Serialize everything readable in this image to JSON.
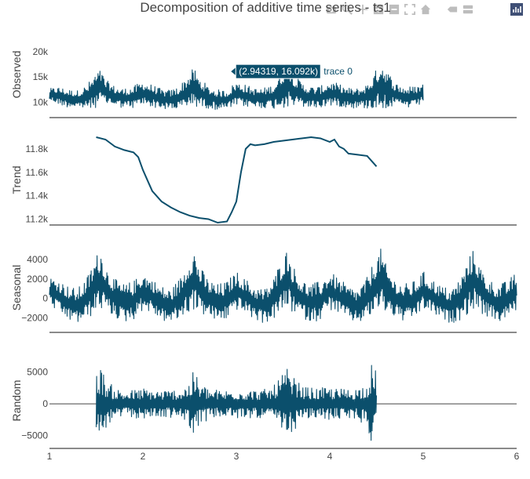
{
  "chart_data": {
    "type": "line",
    "title": "Decomposition of additive time series - ts1",
    "series_color": "#0b4f6c",
    "x_axis": {
      "range": [
        1,
        6
      ],
      "ticks": [
        "1",
        "2",
        "3",
        "4",
        "5",
        "6"
      ]
    },
    "panels": [
      {
        "ylabel": "Observed",
        "ylim": [
          7000,
          24000
        ],
        "ytick_values": [
          10000,
          15000,
          20000
        ],
        "ytick_labels": [
          "10k",
          "15k",
          "20k"
        ],
        "x": [
          1.0,
          1.1,
          1.2,
          1.3,
          1.4,
          1.5,
          1.55,
          1.6,
          1.7,
          1.8,
          1.9,
          2.0,
          2.1,
          2.2,
          2.3,
          2.4,
          2.5,
          2.55,
          2.6,
          2.7,
          2.8,
          2.9,
          3.0,
          3.1,
          3.2,
          3.3,
          3.4,
          3.5,
          3.55,
          3.6,
          3.7,
          3.8,
          3.9,
          4.0,
          4.1,
          4.2,
          4.3,
          4.4,
          4.5,
          4.55,
          4.6,
          4.7,
          4.8,
          4.9,
          5.0
        ],
        "y_mid": [
          11500,
          11300,
          10800,
          10600,
          11000,
          12500,
          13000,
          12000,
          11200,
          10800,
          11000,
          11800,
          11300,
          10600,
          10500,
          11000,
          12500,
          13000,
          12000,
          11000,
          10500,
          10500,
          11700,
          11300,
          10800,
          10900,
          11200,
          12800,
          13500,
          12500,
          11500,
          11000,
          11000,
          11800,
          11400,
          10900,
          10800,
          11200,
          12600,
          13600,
          12800,
          11500,
          11000,
          11000,
          11800
        ],
        "y_amp": [
          1200,
          1800,
          1800,
          1800,
          2500,
          3500,
          3500,
          2500,
          2000,
          2000,
          2200,
          2500,
          2200,
          2000,
          2000,
          2500,
          3500,
          3800,
          3000,
          2200,
          2000,
          2000,
          2500,
          2200,
          2000,
          2000,
          2500,
          4000,
          4500,
          3500,
          2500,
          2200,
          2200,
          2500,
          2200,
          2000,
          2000,
          2500,
          4000,
          5000,
          4000,
          2500,
          2200,
          2200,
          2000
        ]
      },
      {
        "ylabel": "Trend",
        "ylim": [
          11150,
          11920
        ],
        "ytick_values": [
          11200,
          11400,
          11600,
          11800
        ],
        "ytick_labels": [
          "11.2k",
          "11.4k",
          "11.6k",
          "11.8k"
        ],
        "x": [
          1.5,
          1.6,
          1.7,
          1.8,
          1.9,
          1.95,
          2.0,
          2.05,
          2.1,
          2.2,
          2.3,
          2.4,
          2.5,
          2.6,
          2.7,
          2.8,
          2.9,
          2.95,
          3.0,
          3.05,
          3.1,
          3.15,
          3.2,
          3.3,
          3.4,
          3.5,
          3.6,
          3.7,
          3.8,
          3.9,
          4.0,
          4.05,
          4.1,
          4.15,
          4.2,
          4.3,
          4.4,
          4.5
        ],
        "y": [
          11900,
          11880,
          11820,
          11790,
          11770,
          11730,
          11620,
          11530,
          11440,
          11350,
          11300,
          11260,
          11230,
          11210,
          11200,
          11170,
          11180,
          11260,
          11350,
          11600,
          11800,
          11840,
          11830,
          11840,
          11860,
          11870,
          11880,
          11890,
          11900,
          11890,
          11860,
          11880,
          11820,
          11800,
          11760,
          11750,
          11740,
          11650
        ]
      },
      {
        "ylabel": "Seasonal",
        "ylim": [
          -3500,
          5700
        ],
        "ytick_values": [
          -2000,
          0,
          2000,
          4000
        ],
        "ytick_labels": [
          "−2000",
          "0",
          "2000",
          "4000"
        ],
        "x": [
          1.0,
          1.1,
          1.2,
          1.3,
          1.4,
          1.5,
          1.55,
          1.6,
          1.7,
          1.8,
          1.9,
          2.0,
          2.1,
          2.2,
          2.3,
          2.4,
          2.5,
          2.55,
          2.6,
          2.7,
          2.8,
          2.9,
          3.0,
          3.1,
          3.2,
          3.3,
          3.4,
          3.5,
          3.55,
          3.6,
          3.7,
          3.8,
          3.9,
          4.0,
          4.1,
          4.2,
          4.3,
          4.4,
          4.5,
          4.55,
          4.6,
          4.7,
          4.8,
          4.9,
          5.0,
          5.1,
          5.2,
          5.3,
          5.4,
          5.5,
          5.55,
          5.6,
          5.7,
          5.8,
          5.9,
          6.0
        ],
        "y_mid": [
          800,
          200,
          -500,
          -800,
          0,
          1500,
          2000,
          1000,
          0,
          -500,
          -200,
          800,
          200,
          -500,
          -800,
          0,
          1500,
          2000,
          1000,
          0,
          -500,
          -200,
          800,
          200,
          -500,
          -800,
          0,
          1500,
          2000,
          1000,
          0,
          -500,
          -200,
          800,
          200,
          -500,
          -800,
          0,
          1500,
          2000,
          1000,
          0,
          -500,
          -200,
          800,
          200,
          -500,
          -800,
          0,
          1500,
          2000,
          1000,
          0,
          -500,
          -200,
          800
        ],
        "y_amp": [
          1500,
          1800,
          1800,
          1800,
          2200,
          3000,
          3200,
          2500,
          2000,
          2000,
          2000,
          2000,
          1800,
          1800,
          1800,
          2200,
          3000,
          3200,
          2500,
          2000,
          2000,
          2000,
          2000,
          1800,
          1800,
          1800,
          2200,
          3000,
          3200,
          2500,
          2000,
          2000,
          2000,
          2000,
          1800,
          1800,
          1800,
          2200,
          3000,
          3200,
          2500,
          2000,
          2000,
          2000,
          2000,
          1800,
          1800,
          1800,
          2200,
          3000,
          3200,
          2500,
          2000,
          2000,
          2000,
          2000
        ]
      },
      {
        "ylabel": "Random",
        "ylim": [
          -7000,
          8000
        ],
        "ytick_values": [
          -5000,
          0,
          5000
        ],
        "ytick_labels": [
          "−5000",
          "0",
          "5000"
        ],
        "x": [
          1.5,
          1.55,
          1.6,
          1.7,
          1.8,
          1.9,
          2.0,
          2.1,
          2.2,
          2.3,
          2.4,
          2.5,
          2.55,
          2.6,
          2.7,
          2.8,
          2.9,
          3.0,
          3.1,
          3.2,
          3.3,
          3.4,
          3.5,
          3.55,
          3.6,
          3.7,
          3.8,
          3.9,
          4.0,
          4.1,
          4.2,
          4.3,
          4.4,
          4.45,
          4.5
        ],
        "y_mid": [
          0,
          0,
          0,
          0,
          0,
          0,
          0,
          0,
          0,
          0,
          0,
          0,
          0,
          0,
          0,
          0,
          0,
          0,
          0,
          0,
          0,
          0,
          0,
          0,
          0,
          0,
          0,
          0,
          0,
          0,
          0,
          0,
          0,
          0,
          0
        ],
        "y_amp": [
          5500,
          6000,
          4000,
          2500,
          2200,
          2200,
          2500,
          2300,
          2200,
          2200,
          2500,
          3500,
          5500,
          3500,
          2500,
          2200,
          2200,
          2500,
          2300,
          2200,
          2300,
          2800,
          5000,
          5500,
          4500,
          2800,
          2500,
          2500,
          2600,
          2400,
          2400,
          2600,
          3500,
          6500,
          5000
        ]
      }
    ],
    "hover": {
      "x": 2.94319,
      "y": 16092,
      "label": "(2.94319, 16.092k)",
      "trace": "trace 0"
    }
  },
  "modebar": {
    "icons": [
      "camera-icon",
      "zoom-icon",
      "pan-icon",
      "zoom-in-icon",
      "zoom-out-icon",
      "autoscale-icon",
      "home-icon",
      "spike-lines-icon",
      "compare-hover-icon",
      "plotly-logo-icon"
    ]
  }
}
